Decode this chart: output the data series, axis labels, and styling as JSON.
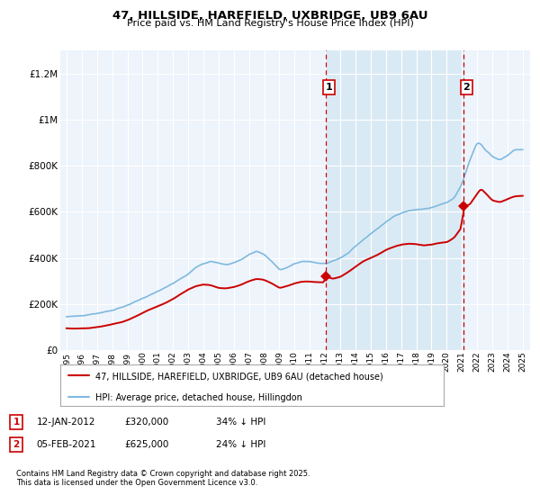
{
  "title": "47, HILLSIDE, HAREFIELD, UXBRIDGE, UB9 6AU",
  "subtitle": "Price paid vs. HM Land Registry's House Price Index (HPI)",
  "footnote": "Contains HM Land Registry data © Crown copyright and database right 2025.\nThis data is licensed under the Open Government Licence v3.0.",
  "legend_line1": "47, HILLSIDE, HAREFIELD, UXBRIDGE, UB9 6AU (detached house)",
  "legend_line2": "HPI: Average price, detached house, Hillingdon",
  "annotation1": {
    "label": "1",
    "date_label": "12-JAN-2012",
    "price_label": "£320,000",
    "hpi_label": "34% ↓ HPI",
    "x_year": 2012.04,
    "y_price": 320000
  },
  "annotation2": {
    "label": "2",
    "date_label": "05-FEB-2021",
    "price_label": "£625,000",
    "hpi_label": "24% ↓ HPI",
    "x_year": 2021.1,
    "y_price": 625000
  },
  "hpi_color": "#7fb9df",
  "price_color": "#cc0000",
  "vline_color": "#cc0000",
  "shade_color": "#daeaf5",
  "background_plot": "#eef4fb",
  "background_fig": "#ffffff",
  "ylim": [
    0,
    1300000
  ],
  "xlim_start": 1994.6,
  "xlim_end": 2025.5,
  "yticks": [
    0,
    200000,
    400000,
    600000,
    800000,
    1000000,
    1200000
  ],
  "ytick_labels": [
    "£0",
    "£200K",
    "£400K",
    "£600K",
    "£800K",
    "£1M",
    "£1.2M"
  ],
  "xticks": [
    1995,
    1996,
    1997,
    1998,
    1999,
    2000,
    2001,
    2002,
    2003,
    2004,
    2005,
    2006,
    2007,
    2008,
    2009,
    2010,
    2011,
    2012,
    2013,
    2014,
    2015,
    2016,
    2017,
    2018,
    2019,
    2020,
    2021,
    2022,
    2023,
    2024,
    2025
  ]
}
